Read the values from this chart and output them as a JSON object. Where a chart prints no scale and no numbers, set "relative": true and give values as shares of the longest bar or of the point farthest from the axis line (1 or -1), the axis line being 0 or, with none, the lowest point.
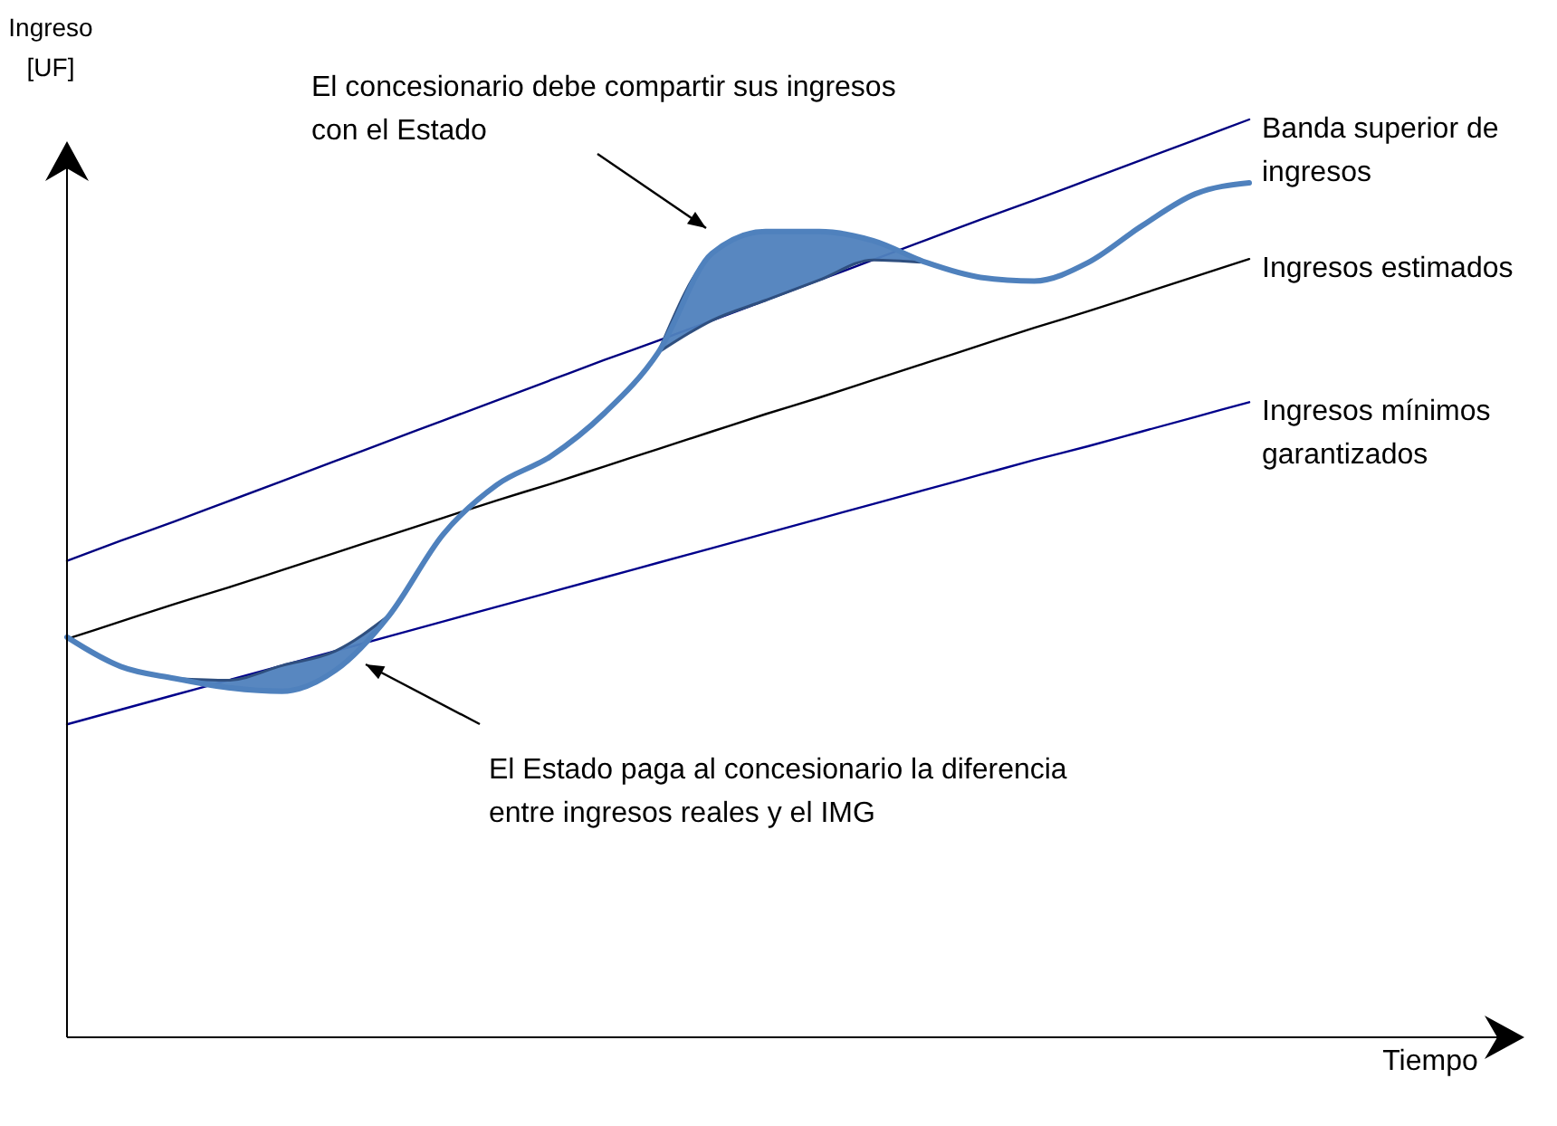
{
  "chart_data": {
    "type": "line",
    "relative": true,
    "xlabel": "Tiempo",
    "ylabel": "Ingreso [UF]",
    "categories": [
      null,
      null,
      null,
      null,
      null,
      null,
      null,
      null,
      null,
      null,
      null,
      null,
      null,
      null,
      null,
      null,
      null,
      null,
      null,
      null,
      null,
      null,
      null
    ],
    "series": [
      {
        "name": "Banda superior de ingresos",
        "color": "#000080",
        "values": [
          0.519,
          0.541,
          0.562,
          0.584,
          0.606,
          0.628,
          0.65,
          0.672,
          0.694,
          0.716,
          0.738,
          0.759,
          0.781,
          0.803,
          0.825,
          0.847,
          0.869,
          0.891,
          0.912,
          0.934,
          0.956,
          0.978,
          1.0
        ]
      },
      {
        "name": "Ingresos estimados",
        "color": "#000000",
        "values": [
          0.434,
          0.453,
          0.472,
          0.49,
          0.509,
          0.528,
          0.547,
          0.566,
          0.585,
          0.603,
          0.622,
          0.641,
          0.66,
          0.679,
          0.697,
          0.716,
          0.735,
          0.754,
          0.773,
          0.791,
          0.81,
          0.829,
          0.848
        ]
      },
      {
        "name": "Ingresos mínimos garantizados",
        "color": "#00008b",
        "values": [
          0.341,
          0.357,
          0.373,
          0.389,
          0.405,
          0.421,
          0.437,
          0.453,
          0.469,
          0.485,
          0.501,
          0.517,
          0.533,
          0.549,
          0.565,
          0.581,
          0.597,
          0.613,
          0.629,
          0.644,
          0.66,
          0.676,
          0.692
        ]
      },
      {
        "color": "#4f81bd",
        "values": [
          0.436,
          0.404,
          0.391,
          0.381,
          0.377,
          0.4,
          0.46,
          0.548,
          0.602,
          0.633,
          0.68,
          0.746,
          0.854,
          0.878,
          0.878,
          0.868,
          0.844,
          0.828,
          0.824,
          0.844,
          0.884,
          0.919,
          0.931
        ],
        "lower": [
          null,
          null,
          0.391,
          0.381,
          0.377,
          0.4,
          0.46,
          null,
          null,
          null,
          null,
          0.746,
          0.781,
          0.803,
          0.825,
          0.847,
          0.844,
          null,
          null,
          null,
          null,
          null,
          null
        ],
        "upper": [
          null,
          null,
          0.391,
          0.389,
          0.405,
          0.421,
          0.46,
          null,
          null,
          null,
          null,
          0.746,
          0.854,
          0.878,
          0.878,
          0.868,
          0.844,
          null,
          null,
          null,
          null,
          null,
          null
        ]
      }
    ],
    "annotations": [
      "El concesionario debe compartir sus ingresos con el Estado",
      "El Estado paga al concesionario la diferencia entre ingresos reales y el IMG"
    ]
  }
}
